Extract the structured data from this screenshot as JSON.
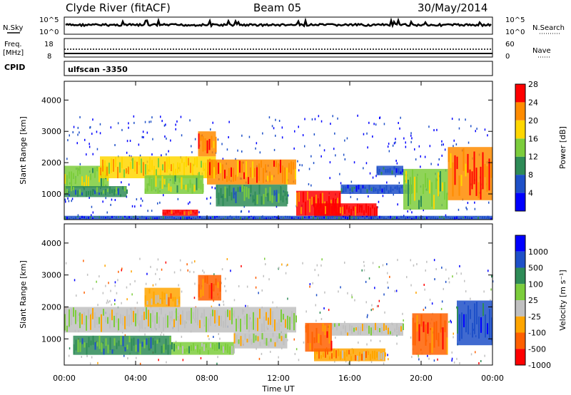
{
  "header": {
    "station": "Clyde River (fitACF)",
    "beam": "Beam 05",
    "date": "30/May/2014"
  },
  "top_panels": {
    "nsky_label": "N.Sky",
    "nsearch_label": "N.Search",
    "left_ticks": [
      "10^5",
      "10^0"
    ],
    "right_ticks": [
      "10^5",
      "10^0"
    ],
    "freq_label": "Freq.",
    "freq_unit": "[MHz]",
    "freq_ticks": [
      "18",
      "8"
    ],
    "nave_label": "Nave",
    "nave_ticks": [
      "60",
      "0"
    ],
    "cpid_label": "CPID",
    "cpid_value": "ulfscan -3350"
  },
  "chart_data": [
    {
      "type": "heatmap",
      "name": "power",
      "ylabel": "Slant Range [km]",
      "yticks": [
        1000,
        2000,
        3000,
        4000
      ],
      "ylim": [
        180,
        4600
      ],
      "xlim": [
        0,
        24
      ],
      "colorbar": {
        "label": "Power [dB]",
        "ticks": [
          "4",
          "8",
          "12",
          "16",
          "20",
          "24",
          "28"
        ],
        "colors": [
          "#0000ff",
          "#1e50c8",
          "#2e8b57",
          "#7ccd3c",
          "#ffd700",
          "#ff8c00",
          "#ff0000"
        ]
      },
      "bands": [
        {
          "t0": 0.0,
          "t1": 2.5,
          "r0": 1200,
          "r1": 1900,
          "level": 3
        },
        {
          "t0": 0.0,
          "t1": 3.5,
          "r0": 900,
          "r1": 1250,
          "level": 2
        },
        {
          "t0": 2.0,
          "t1": 8.5,
          "r0": 1500,
          "r1": 2200,
          "level": 4
        },
        {
          "t0": 4.5,
          "t1": 7.8,
          "r0": 1000,
          "r1": 1600,
          "level": 3
        },
        {
          "t0": 8.0,
          "t1": 13.0,
          "r0": 1300,
          "r1": 2100,
          "level": 5
        },
        {
          "t0": 8.5,
          "t1": 12.5,
          "r0": 600,
          "r1": 1300,
          "level": 2
        },
        {
          "t0": 13.0,
          "t1": 15.5,
          "r0": 300,
          "r1": 1100,
          "level": 6
        },
        {
          "t0": 14.0,
          "t1": 17.5,
          "r0": 250,
          "r1": 700,
          "level": 6
        },
        {
          "t0": 15.5,
          "t1": 19.5,
          "r0": 1000,
          "r1": 1300,
          "level": 1
        },
        {
          "t0": 17.5,
          "t1": 19.0,
          "r0": 1600,
          "r1": 1900,
          "level": 1
        },
        {
          "t0": 19.0,
          "t1": 21.5,
          "r0": 500,
          "r1": 1800,
          "level": 3
        },
        {
          "t0": 21.5,
          "t1": 24.0,
          "r0": 800,
          "r1": 2500,
          "level": 5
        },
        {
          "t0": 5.5,
          "t1": 7.5,
          "r0": 300,
          "r1": 500,
          "level": 6
        },
        {
          "t0": 7.5,
          "t1": 8.5,
          "r0": 2200,
          "r1": 3000,
          "level": 5
        },
        {
          "t0": 0.0,
          "t1": 24.0,
          "r0": 180,
          "r1": 300,
          "level": 1
        }
      ]
    },
    {
      "type": "heatmap",
      "name": "velocity",
      "ylabel": "Slant Range [km]",
      "xlabel": "Time UT",
      "yticks": [
        1000,
        2000,
        3000,
        4000
      ],
      "ylim": [
        180,
        4600
      ],
      "xlim": [
        0,
        24
      ],
      "xticks": [
        "00:00",
        "04:00",
        "08:00",
        "12:00",
        "16:00",
        "20:00",
        "00:00"
      ],
      "colorbar": {
        "label": "Velocity [m s⁻¹]",
        "ticks": [
          "1000",
          "500",
          "100",
          "25",
          "-25",
          "-100",
          "-500",
          "-1000"
        ],
        "colors": [
          "#0000ff",
          "#1e50c8",
          "#2e8b57",
          "#7ccd3c",
          "#c0c0c0",
          "#ffa500",
          "#ff6000",
          "#ff0000"
        ]
      },
      "bands": [
        {
          "t0": 0.0,
          "t1": 13.0,
          "r0": 1200,
          "r1": 2000,
          "level": 4
        },
        {
          "t0": 0.5,
          "t1": 6.0,
          "r0": 500,
          "r1": 1100,
          "level": 2
        },
        {
          "t0": 6.0,
          "t1": 9.5,
          "r0": 500,
          "r1": 900,
          "level": 3
        },
        {
          "t0": 9.5,
          "t1": 12.5,
          "r0": 700,
          "r1": 1200,
          "level": 4
        },
        {
          "t0": 14.0,
          "t1": 18.0,
          "r0": 300,
          "r1": 700,
          "level": 5
        },
        {
          "t0": 13.5,
          "t1": 15.0,
          "r0": 600,
          "r1": 1500,
          "level": 6
        },
        {
          "t0": 15.0,
          "t1": 19.0,
          "r0": 1100,
          "r1": 1500,
          "level": 4
        },
        {
          "t0": 19.5,
          "t1": 21.5,
          "r0": 500,
          "r1": 1800,
          "level": 6
        },
        {
          "t0": 22.0,
          "t1": 24.0,
          "r0": 800,
          "r1": 2200,
          "level": 1
        },
        {
          "t0": 7.5,
          "t1": 8.8,
          "r0": 2200,
          "r1": 3000,
          "level": 6
        },
        {
          "t0": 4.5,
          "t1": 6.5,
          "r0": 2000,
          "r1": 2600,
          "level": 5
        }
      ]
    }
  ]
}
